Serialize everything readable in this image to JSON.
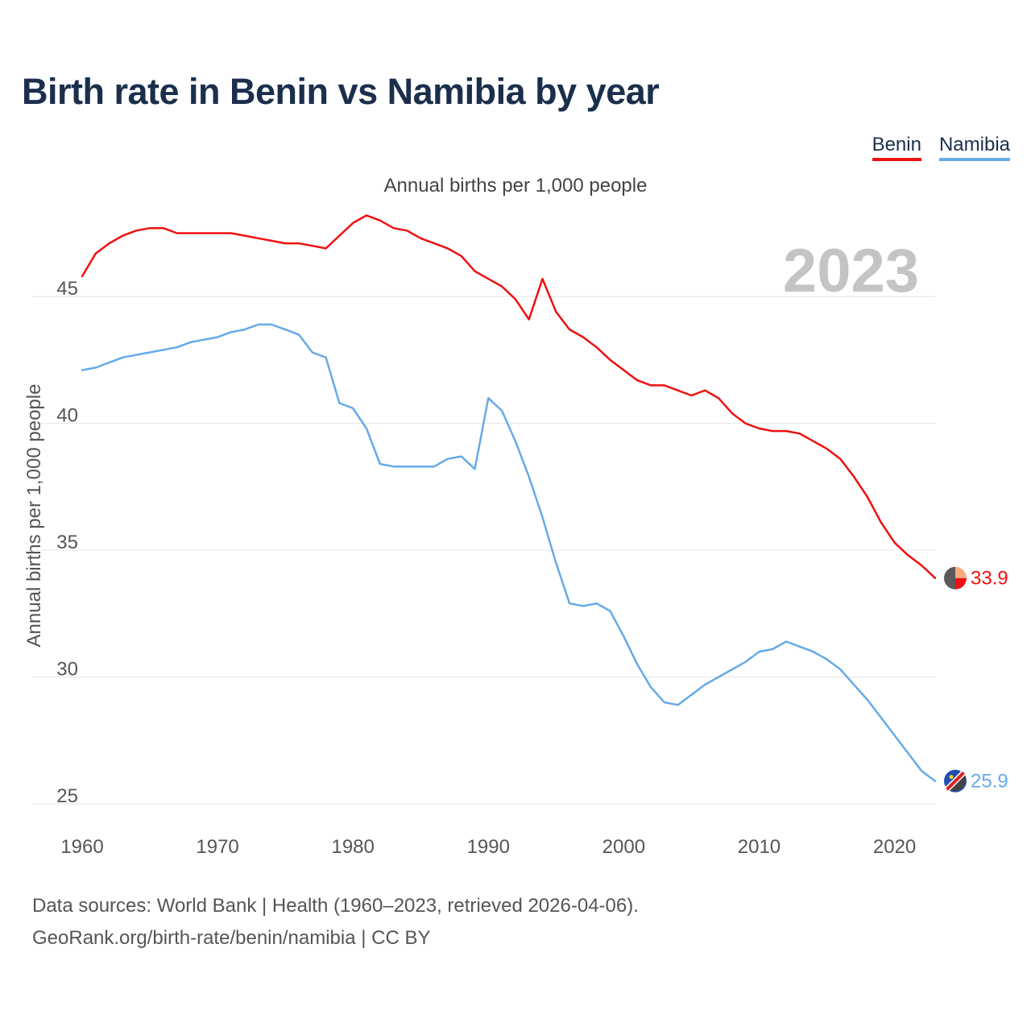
{
  "title": "Birth rate in Benin vs Namibia by year",
  "legend": {
    "items": [
      {
        "label": "Benin",
        "color": "#ee1111"
      },
      {
        "label": "Namibia",
        "color": "#66aae8"
      }
    ]
  },
  "subtitle": "Annual births per 1,000 people",
  "year_overlay": "2023",
  "footer": {
    "line1": "Data sources: World Bank | Health (1960–2023, retrieved 2026-04-06).",
    "line2": "GeoRank.org/birth-rate/benin/namibia | CC BY"
  },
  "chart_data": {
    "type": "line",
    "title": "Birth rate in Benin vs Namibia by year",
    "xlabel": "",
    "ylabel": "Annual births per 1,000 people",
    "xlim": [
      1960,
      2023
    ],
    "ylim": [
      25,
      48.5
    ],
    "xticks": [
      1960,
      1970,
      1980,
      1990,
      2000,
      2010,
      2020
    ],
    "yticks": [
      25,
      30,
      35,
      40,
      45
    ],
    "grid": true,
    "legend_position": "top-right",
    "x": [
      1960,
      1961,
      1962,
      1963,
      1964,
      1965,
      1966,
      1967,
      1968,
      1969,
      1970,
      1971,
      1972,
      1973,
      1974,
      1975,
      1976,
      1977,
      1978,
      1979,
      1980,
      1981,
      1982,
      1983,
      1984,
      1985,
      1986,
      1987,
      1988,
      1989,
      1990,
      1991,
      1992,
      1993,
      1994,
      1995,
      1996,
      1997,
      1998,
      1999,
      2000,
      2001,
      2002,
      2003,
      2004,
      2005,
      2006,
      2007,
      2008,
      2009,
      2010,
      2011,
      2012,
      2013,
      2014,
      2015,
      2016,
      2017,
      2018,
      2019,
      2020,
      2021,
      2022,
      2023
    ],
    "series": [
      {
        "name": "Benin",
        "color": "#ee1111",
        "end_label": "33.9",
        "values": [
          45.8,
          46.7,
          47.1,
          47.4,
          47.6,
          47.7,
          47.7,
          47.5,
          47.5,
          47.5,
          47.5,
          47.5,
          47.4,
          47.3,
          47.2,
          47.1,
          47.1,
          47.0,
          46.9,
          47.4,
          47.9,
          48.2,
          48.0,
          47.7,
          47.6,
          47.3,
          47.1,
          46.9,
          46.6,
          46.0,
          45.7,
          45.4,
          44.9,
          44.1,
          45.7,
          44.4,
          43.7,
          43.4,
          43.0,
          42.5,
          42.1,
          41.7,
          41.5,
          41.5,
          41.3,
          41.1,
          41.3,
          41.0,
          40.4,
          40.0,
          39.8,
          39.7,
          39.7,
          39.6,
          39.3,
          39.0,
          38.6,
          37.9,
          37.1,
          36.1,
          35.3,
          34.8,
          34.4,
          33.9
        ]
      },
      {
        "name": "Namibia",
        "color": "#66aae8",
        "end_label": "25.9",
        "values": [
          42.1,
          42.2,
          42.4,
          42.6,
          42.7,
          42.8,
          42.9,
          43.0,
          43.2,
          43.3,
          43.4,
          43.6,
          43.7,
          43.9,
          43.9,
          43.7,
          43.5,
          42.8,
          42.6,
          40.8,
          40.6,
          39.8,
          38.4,
          38.3,
          38.3,
          38.3,
          38.3,
          38.6,
          38.7,
          38.2,
          41.0,
          40.5,
          39.3,
          37.9,
          36.3,
          34.5,
          32.9,
          32.8,
          32.9,
          32.6,
          31.6,
          30.5,
          29.6,
          29.0,
          28.9,
          29.3,
          29.7,
          30.0,
          30.3,
          30.6,
          31.0,
          31.1,
          31.4,
          31.2,
          31.0,
          30.7,
          30.3,
          29.7,
          29.1,
          28.4,
          27.7,
          27.0,
          26.3,
          25.9
        ]
      }
    ]
  }
}
